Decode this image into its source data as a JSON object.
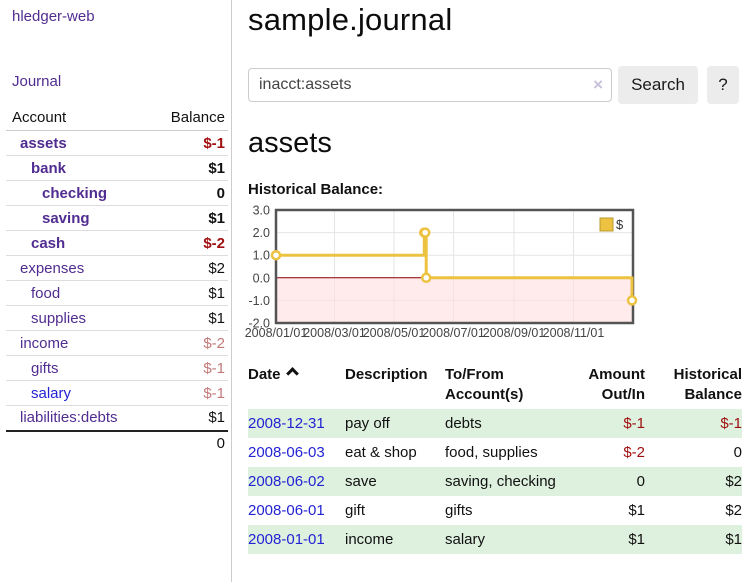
{
  "app": {
    "title": "hledger-web",
    "nav_journal": "Journal"
  },
  "theme": {
    "link_purple": "#512d91",
    "link_blue": "#2323d3",
    "negative_red": "#a01010",
    "negative_faded_red": "#c47979",
    "row_stripe_green": "#def0de",
    "series_gold": "#edc240"
  },
  "sidebar": {
    "header": {
      "account": "Account",
      "balance": "Balance"
    },
    "accounts": [
      {
        "name": "assets",
        "indent": 0,
        "bold": true,
        "balance": "$-1",
        "neg": true,
        "faded": false,
        "blue": false
      },
      {
        "name": "bank",
        "indent": 1,
        "bold": true,
        "balance": "$1",
        "neg": false,
        "faded": false,
        "blue": false
      },
      {
        "name": "checking",
        "indent": 2,
        "bold": true,
        "balance": "0",
        "neg": false,
        "faded": false,
        "blue": false
      },
      {
        "name": "saving",
        "indent": 2,
        "bold": true,
        "balance": "$1",
        "neg": false,
        "faded": false,
        "blue": false
      },
      {
        "name": "cash",
        "indent": 1,
        "bold": true,
        "balance": "$-2",
        "neg": true,
        "faded": false,
        "blue": false
      },
      {
        "name": "expenses",
        "indent": 0,
        "bold": false,
        "balance": "$2",
        "neg": false,
        "faded": false,
        "blue": false
      },
      {
        "name": "food",
        "indent": 1,
        "bold": false,
        "balance": "$1",
        "neg": false,
        "faded": false,
        "blue": false
      },
      {
        "name": "supplies",
        "indent": 1,
        "bold": false,
        "balance": "$1",
        "neg": false,
        "faded": false,
        "blue": false
      },
      {
        "name": "income",
        "indent": 0,
        "bold": false,
        "balance": "$-2",
        "neg": true,
        "faded": true,
        "blue": false
      },
      {
        "name": "gifts",
        "indent": 1,
        "bold": false,
        "balance": "$-1",
        "neg": true,
        "faded": true,
        "blue": false
      },
      {
        "name": "salary",
        "indent": 1,
        "bold": false,
        "balance": "$-1",
        "neg": true,
        "faded": true,
        "blue": true
      },
      {
        "name": "liabilities:debts",
        "indent": 0,
        "bold": false,
        "balance": "$1",
        "neg": false,
        "faded": false,
        "blue": false
      }
    ],
    "total": "0"
  },
  "header": {
    "title": "sample.journal"
  },
  "search": {
    "value": "inacct:assets",
    "clear_icon": "×",
    "button": "Search",
    "help": "?"
  },
  "account_page": {
    "heading": "assets",
    "chart_label": "Historical Balance:"
  },
  "chart_data": {
    "type": "line",
    "step": true,
    "title": "Historical Balance",
    "series": [
      {
        "name": "$",
        "color": "#edc240",
        "points": [
          [
            "2008-01-01",
            1
          ],
          [
            "2008-06-01",
            2
          ],
          [
            "2008-06-02",
            2
          ],
          [
            "2008-06-03",
            0
          ],
          [
            "2008-12-31",
            -1
          ]
        ]
      }
    ],
    "xlim": [
      "2008-01-01",
      "2009-01-01"
    ],
    "ylim": [
      -2,
      3
    ],
    "x_ticks": [
      "2008/01/01",
      "2008/03/01",
      "2008/05/01",
      "2008/07/01",
      "2008/09/01",
      "2008/11/01"
    ],
    "y_ticks": [
      3.0,
      2.0,
      1.0,
      0.0,
      -1.0,
      -2.0
    ],
    "grid": true,
    "legend": "$",
    "legend_position": "top-right",
    "negative_region_color": "#ffdddd",
    "zero_line_color": "#8b0000"
  },
  "register": {
    "headers": [
      {
        "label": "Date",
        "line2": ""
      },
      {
        "label": "Description",
        "line2": ""
      },
      {
        "label": "To/From",
        "line2": "Account(s)"
      },
      {
        "label": "Amount",
        "line2": "Out/In"
      },
      {
        "label": "Historical",
        "line2": "Balance"
      }
    ],
    "rows": [
      {
        "date": "2008-12-31",
        "description": "pay off",
        "accounts": "debts",
        "amount": "$-1",
        "amount_neg": true,
        "balance": "$-1",
        "balance_neg": true
      },
      {
        "date": "2008-06-03",
        "description": "eat & shop",
        "accounts": "food, supplies",
        "amount": "$-2",
        "amount_neg": true,
        "balance": "0",
        "balance_neg": false
      },
      {
        "date": "2008-06-02",
        "description": "save",
        "accounts": "saving, checking",
        "amount": "0",
        "amount_neg": false,
        "balance": "$2",
        "balance_neg": false
      },
      {
        "date": "2008-06-01",
        "description": "gift",
        "accounts": "gifts",
        "amount": "$1",
        "amount_neg": false,
        "balance": "$2",
        "balance_neg": false
      },
      {
        "date": "2008-01-01",
        "description": "income",
        "accounts": "salary",
        "amount": "$1",
        "amount_neg": false,
        "balance": "$1",
        "balance_neg": false
      }
    ]
  }
}
